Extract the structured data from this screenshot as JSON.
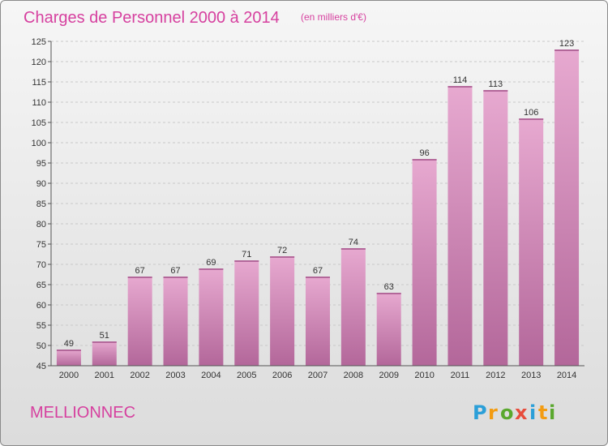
{
  "title": "Charges de Personnel 2000 à 2014",
  "subtitle": "(en milliers d'€)",
  "commune": "MELLIONNEC",
  "logo": {
    "letters": [
      "P",
      "r",
      "o",
      "x",
      "i",
      "t",
      "i"
    ],
    "colors": [
      "#2b9fd8",
      "#f39c12",
      "#5aa82e",
      "#e74c3c",
      "#2b9fd8",
      "#f39c12",
      "#5aa82e"
    ]
  },
  "colors": {
    "bar": "#d889bb",
    "bar_light": "#e7a9d0",
    "bar_dark": "#b3679a",
    "title": "#d6409f",
    "grid": "#c8c8c8"
  },
  "chart_data": {
    "type": "bar",
    "title": "Charges de Personnel 2000 à 2014",
    "subtitle": "(en milliers d'€)",
    "categories": [
      "2000",
      "2001",
      "2002",
      "2003",
      "2004",
      "2005",
      "2006",
      "2007",
      "2008",
      "2009",
      "2010",
      "2011",
      "2012",
      "2013",
      "2014"
    ],
    "values": [
      49,
      51,
      67,
      67,
      69,
      71,
      72,
      67,
      74,
      63,
      96,
      114,
      113,
      106,
      123
    ],
    "xlabel": "",
    "ylabel": "",
    "ylim": [
      45,
      125
    ],
    "yticks": [
      45,
      50,
      55,
      60,
      65,
      70,
      75,
      80,
      85,
      90,
      95,
      100,
      105,
      110,
      115,
      120,
      125
    ],
    "grid": "horizontal dashed",
    "legend": "none"
  }
}
